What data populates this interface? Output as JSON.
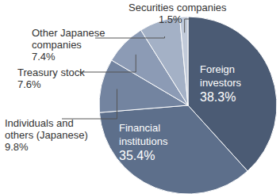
{
  "chart_data": {
    "type": "pie",
    "categories": [
      "Foreign investors",
      "Financial institutions",
      "Individuals and others (Japanese)",
      "Treasury stock",
      "Other Japanese companies",
      "Securities companies"
    ],
    "values": [
      38.3,
      35.4,
      9.8,
      7.6,
      7.4,
      1.5
    ],
    "value_labels": [
      "38.3%",
      "35.4%",
      "9.8%",
      "7.6%",
      "7.4%",
      "1.5%"
    ],
    "colors": [
      "#4b5b74",
      "#5d6f8b",
      "#7384a0",
      "#8c9bb5",
      "#a4b1c6",
      "#c1cad9"
    ],
    "data_labels": true
  }
}
